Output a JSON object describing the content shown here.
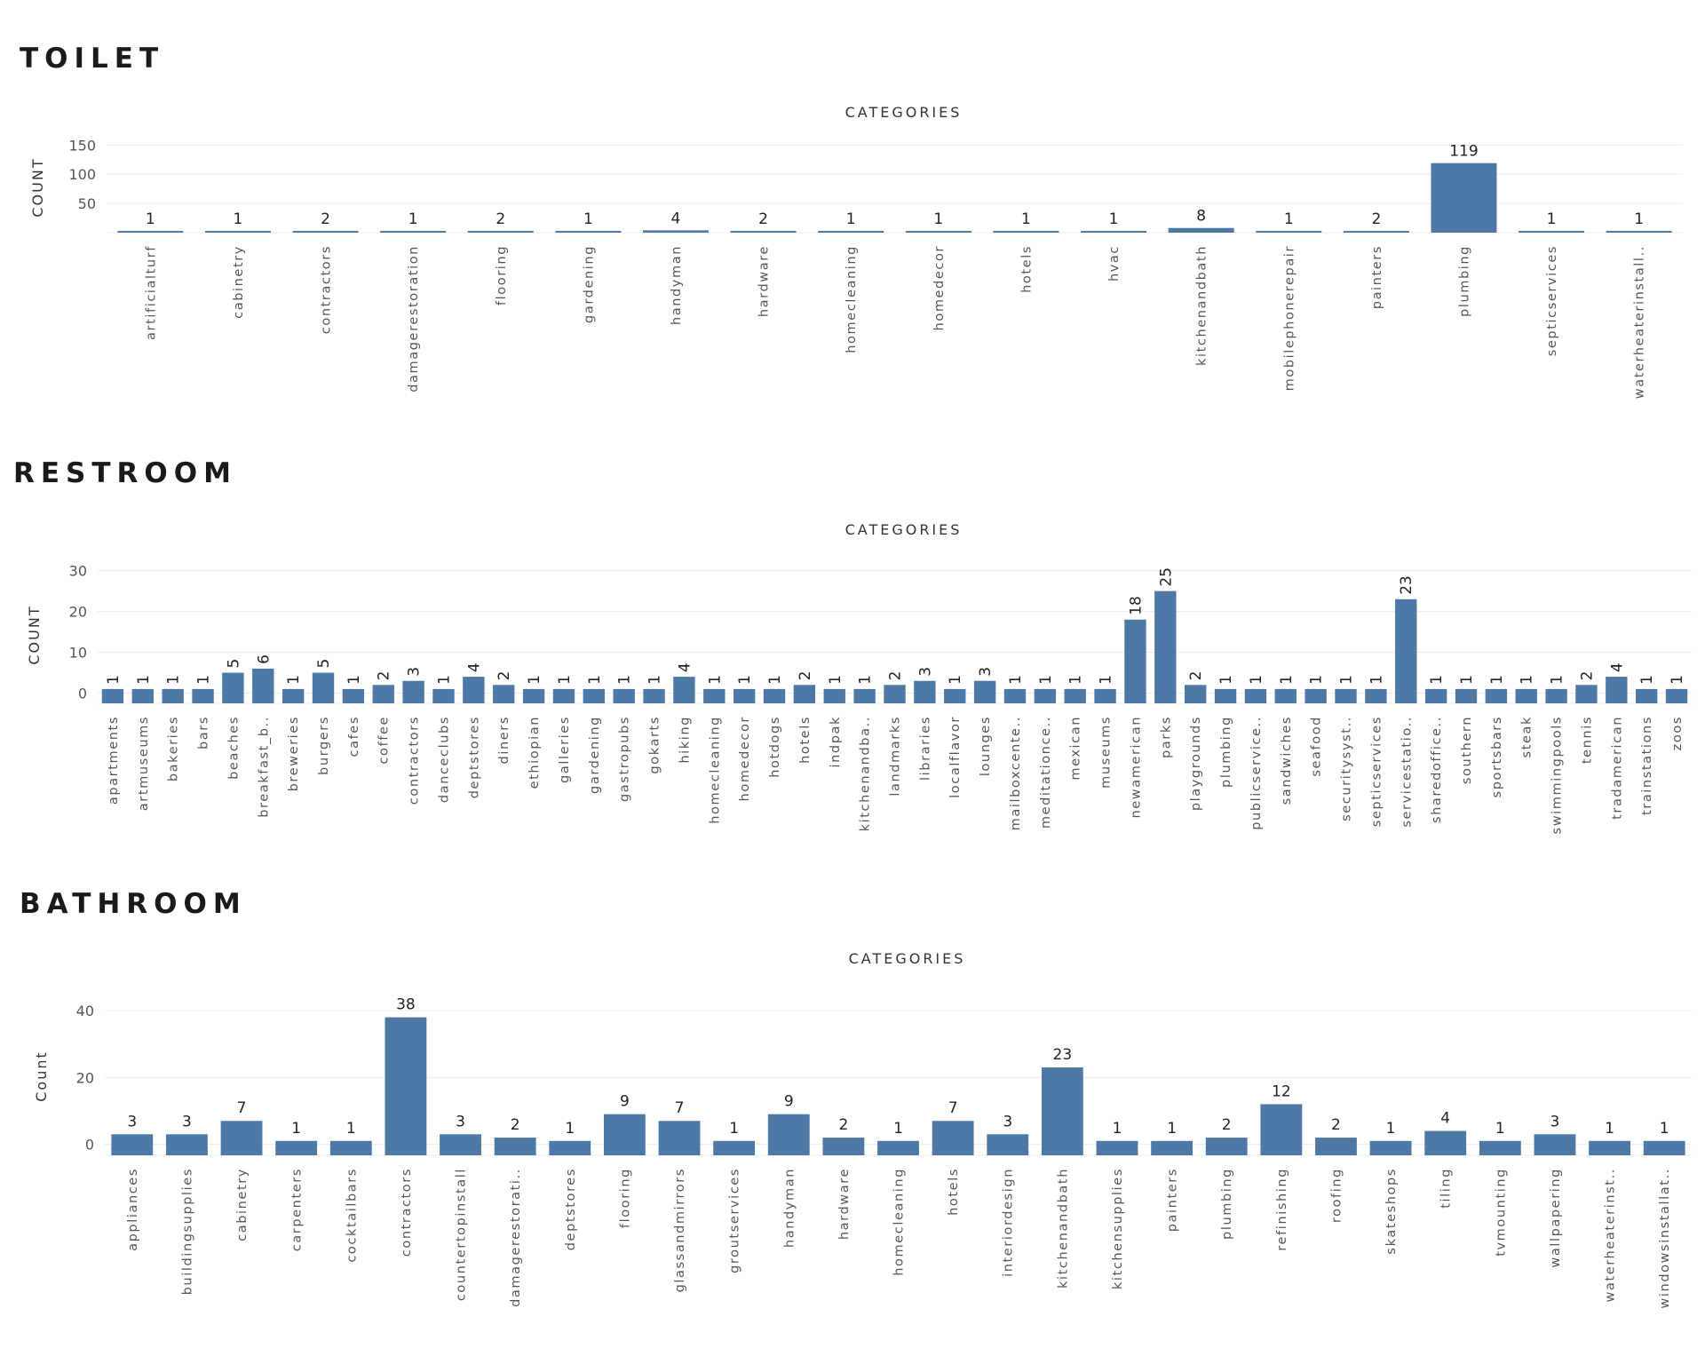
{
  "chart_data": [
    {
      "type": "bar",
      "title": "TOILET",
      "subtitle": "CATEGORIES",
      "xlabel": "",
      "ylabel": "COUNT",
      "ylim": [
        0,
        155
      ],
      "yticks": [
        50,
        100,
        150
      ],
      "grid": true,
      "categories": [
        "artificialturf",
        "cabinetry",
        "contractors",
        "damagerestoration",
        "flooring",
        "gardening",
        "handyman",
        "hardware",
        "homecleaning",
        "homedecor",
        "hotels",
        "hvac",
        "kitchenandbath",
        "mobilephonerepair",
        "painters",
        "plumbing",
        "septicservices",
        "waterheaterinstall.."
      ],
      "values": [
        1,
        1,
        2,
        1,
        2,
        1,
        4,
        2,
        1,
        1,
        1,
        1,
        8,
        1,
        2,
        119,
        1,
        1
      ]
    },
    {
      "type": "bar",
      "title": "RESTROOM",
      "subtitle": "CATEGORIES",
      "xlabel": "",
      "ylabel": "COUNT",
      "ylim": [
        -2.5,
        31
      ],
      "yticks": [
        0,
        10,
        20,
        30
      ],
      "grid": true,
      "categories": [
        "apartments",
        "artmuseums",
        "bakeries",
        "bars",
        "beaches",
        "breakfast_b..",
        "breweries",
        "burgers",
        "cafes",
        "coffee",
        "contractors",
        "danceclubs",
        "deptstores",
        "diners",
        "ethiopian",
        "galleries",
        "gardening",
        "gastropubs",
        "gokarts",
        "hiking",
        "homecleaning",
        "homedecor",
        "hotdogs",
        "hotels",
        "indpak",
        "kitchenandba..",
        "landmarks",
        "libraries",
        "localflavor",
        "lounges",
        "mailboxcente..",
        "meditationce..",
        "mexican",
        "museums",
        "newamerican",
        "parks",
        "playgrounds",
        "plumbing",
        "publicservice..",
        "sandwiches",
        "seafood",
        "securitysyst..",
        "septicservices",
        "servicestatio..",
        "sharedoffice..",
        "southern",
        "sportsbars",
        "steak",
        "swimmingpools",
        "tennis",
        "tradamerican",
        "trainstations",
        "zoos"
      ],
      "values": [
        1,
        1,
        1,
        1,
        5,
        6,
        1,
        5,
        1,
        2,
        3,
        1,
        4,
        2,
        1,
        1,
        1,
        1,
        1,
        4,
        1,
        1,
        1,
        2,
        1,
        1,
        2,
        3,
        1,
        3,
        1,
        1,
        1,
        1,
        18,
        25,
        2,
        1,
        1,
        1,
        1,
        1,
        1,
        23,
        1,
        1,
        1,
        1,
        1,
        2,
        4,
        1,
        1
      ]
    },
    {
      "type": "bar",
      "title": "BATHROOM",
      "subtitle": "CATEGORIES",
      "xlabel": "",
      "ylabel": "Count",
      "ylim": [
        -3.3,
        44
      ],
      "yticks": [
        0,
        20,
        40
      ],
      "grid": true,
      "categories": [
        "appliances",
        "buildingsupplies",
        "cabinetry",
        "carpenters",
        "cocktailbars",
        "contractors",
        "countertopinstall",
        "damagerestorati..",
        "deptstores",
        "flooring",
        "glassandmirrors",
        "groutservices",
        "handyman",
        "hardware",
        "homecleaning",
        "hotels",
        "interiordesign",
        "kitchenandbath",
        "kitchensupplies",
        "painters",
        "plumbing",
        "refinishing",
        "roofing",
        "skateshops",
        "tiling",
        "tvmounting",
        "wallpapering",
        "waterheaterinst..",
        "windowsinstallat.."
      ],
      "values": [
        3,
        3,
        7,
        1,
        1,
        38,
        3,
        2,
        1,
        9,
        7,
        1,
        9,
        2,
        1,
        7,
        3,
        23,
        1,
        1,
        2,
        12,
        2,
        1,
        4,
        1,
        3,
        1,
        1
      ]
    }
  ]
}
